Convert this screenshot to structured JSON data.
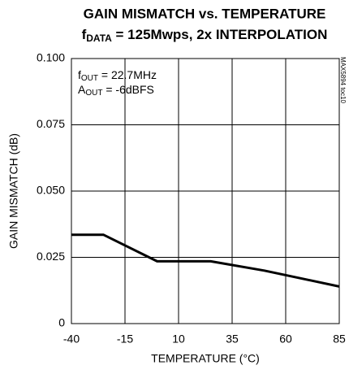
{
  "chart_data": {
    "type": "line",
    "title": "GAIN MISMATCH vs. TEMPERATURE",
    "subtitle": {
      "symbol": "f",
      "subscript": "DATA",
      "text": " = 125Mwps, 2x INTERPOLATION"
    },
    "x_label": "TEMPERATURE (°C)",
    "y_label": "GAIN MISMATCH (dB)",
    "annotations": [
      {
        "symbol": "f",
        "subscript": "OUT",
        "text": " = 22.7MHz"
      },
      {
        "symbol": "A",
        "subscript": "OUT",
        "text": " = -6dBFS"
      }
    ],
    "side_note": "MAX5894 toc10",
    "x": [
      -40,
      -25,
      0,
      25,
      50,
      85
    ],
    "series": [
      {
        "color": "#000000",
        "values": [
          0.0335,
          0.0335,
          0.0235,
          0.0235,
          0.02,
          0.014
        ]
      }
    ],
    "xlim": [
      -40,
      85
    ],
    "xticks": [
      -40,
      -15,
      10,
      35,
      60,
      85
    ],
    "ylim": [
      0,
      0.1
    ],
    "yticks": [
      0,
      0.025,
      {
        "value": 0.05,
        "label": "0.050"
      },
      0.075,
      {
        "value": 0.1,
        "label": "0.100"
      }
    ],
    "grid": true
  }
}
